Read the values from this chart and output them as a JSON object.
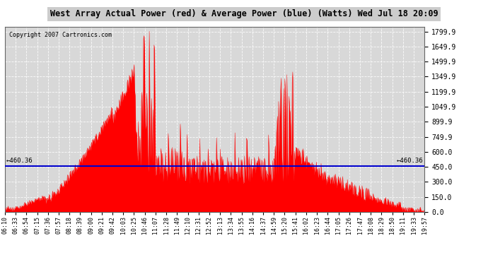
{
  "title": "West Array Actual Power (red) & Average Power (blue) (Watts) Wed Jul 18 20:09",
  "copyright": "Copyright 2007 Cartronics.com",
  "average_power": 460.36,
  "yticks": [
    0.0,
    150.0,
    300.0,
    450.0,
    600.0,
    749.9,
    899.9,
    1049.9,
    1199.9,
    1349.9,
    1499.9,
    1649.9,
    1799.9
  ],
  "ymax": 1850,
  "ymin": 0,
  "bg_color": "#ffffff",
  "plot_bg_color": "#d8d8d8",
  "grid_color": "#bbbbbb",
  "line_color_avg": "#0000cc",
  "fill_color": "#ff0000",
  "xtick_labels": [
    "06:10",
    "06:33",
    "06:54",
    "07:15",
    "07:36",
    "07:57",
    "08:18",
    "08:39",
    "09:00",
    "09:21",
    "09:42",
    "10:03",
    "10:25",
    "10:46",
    "11:07",
    "11:28",
    "11:49",
    "12:10",
    "12:31",
    "12:52",
    "13:13",
    "13:34",
    "13:55",
    "14:16",
    "14:37",
    "14:59",
    "15:20",
    "15:41",
    "16:02",
    "16:23",
    "16:44",
    "17:05",
    "17:26",
    "17:47",
    "18:08",
    "18:29",
    "18:50",
    "19:11",
    "19:33",
    "19:57"
  ]
}
